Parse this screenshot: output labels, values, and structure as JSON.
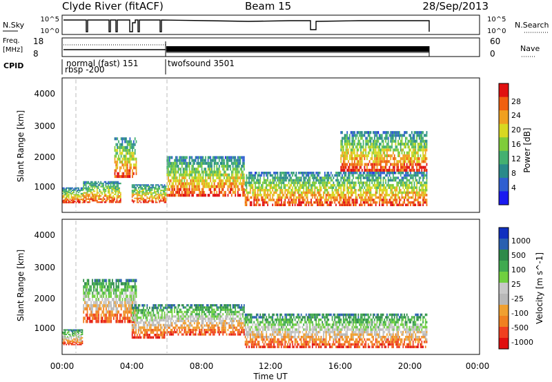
{
  "header": {
    "station": "Clyde River (fitACF)",
    "beam": "Beam 15",
    "date": "28/Sep/2013"
  },
  "panels": {
    "nsky": {
      "left_label": "N.Sky",
      "right_label": "N.Search",
      "ticks": [
        "10^5",
        "10^0"
      ]
    },
    "freq": {
      "left_label_1": "Freq.",
      "left_label_2": "[MHz]",
      "right_label": "Nave",
      "left_ticks": [
        "18",
        "8"
      ],
      "right_ticks": [
        "60",
        "0"
      ]
    },
    "cpid": {
      "label": "CPID",
      "programs": [
        "normal (fast)  151",
        "rbsp  -200",
        "twofsound  3501"
      ]
    }
  },
  "xaxis": {
    "label": "Time UT",
    "ticks": [
      "00:00",
      "04:00",
      "08:00",
      "12:00",
      "16:00",
      "20:00",
      "00:00"
    ]
  },
  "chart_data": [
    {
      "type": "heatmap",
      "title": "",
      "xlabel": "Time UT",
      "ylabel": "Slant Range [km]",
      "xlim": [
        0,
        24
      ],
      "ylim": [
        200,
        4500
      ],
      "yticks": [
        "1000",
        "2000",
        "3000",
        "4000"
      ],
      "grid": false,
      "colorbar": {
        "label": "Power [dB]",
        "ticks": [
          "4",
          "8",
          "12",
          "16",
          "20",
          "24",
          "28"
        ],
        "colors": [
          "#1a1af0",
          "#2f5fd0",
          "#2a8a8a",
          "#44b070",
          "#7fcc3a",
          "#d8d820",
          "#f0a020",
          "#f06010",
          "#e01010"
        ]
      },
      "regions": [
        {
          "t": [
            0.0,
            1.2
          ],
          "r": [
            500,
            1000
          ]
        },
        {
          "t": [
            1.2,
            3.4
          ],
          "r": [
            500,
            1200
          ]
        },
        {
          "t": [
            3.0,
            4.3
          ],
          "r": [
            1300,
            2600
          ]
        },
        {
          "t": [
            4.0,
            6.0
          ],
          "r": [
            500,
            1100
          ]
        },
        {
          "t": [
            6.0,
            10.5
          ],
          "r": [
            700,
            2000
          ]
        },
        {
          "t": [
            10.5,
            21.0
          ],
          "r": [
            400,
            1500
          ]
        },
        {
          "t": [
            16.0,
            21.0
          ],
          "r": [
            1500,
            2800
          ]
        }
      ]
    },
    {
      "type": "heatmap",
      "title": "",
      "xlabel": "Time UT",
      "ylabel": "Slant Range [km]",
      "xlim": [
        0,
        24
      ],
      "ylim": [
        200,
        4500
      ],
      "yticks": [
        "1000",
        "2000",
        "3000",
        "4000"
      ],
      "grid": false,
      "colorbar": {
        "label": "Velocity [m s^-1]",
        "ticks": [
          "1000",
          "500",
          "100",
          "25",
          "-25",
          "-100",
          "-500",
          "-1000"
        ],
        "colors": [
          "#1030c0",
          "#2a60b0",
          "#2e8a4a",
          "#40aa50",
          "#70d040",
          "#c8c8c8",
          "#b8b8b8",
          "#f0a030",
          "#f08020",
          "#f04020",
          "#e01010"
        ]
      },
      "regions": [
        {
          "t": [
            0.0,
            1.2
          ],
          "r": [
            500,
            1000
          ]
        },
        {
          "t": [
            1.2,
            4.3
          ],
          "r": [
            1200,
            2600
          ]
        },
        {
          "t": [
            4.0,
            6.0
          ],
          "r": [
            700,
            1800
          ]
        },
        {
          "t": [
            6.0,
            10.5
          ],
          "r": [
            800,
            1800
          ]
        },
        {
          "t": [
            10.5,
            21.0
          ],
          "r": [
            400,
            1500
          ]
        }
      ]
    }
  ]
}
